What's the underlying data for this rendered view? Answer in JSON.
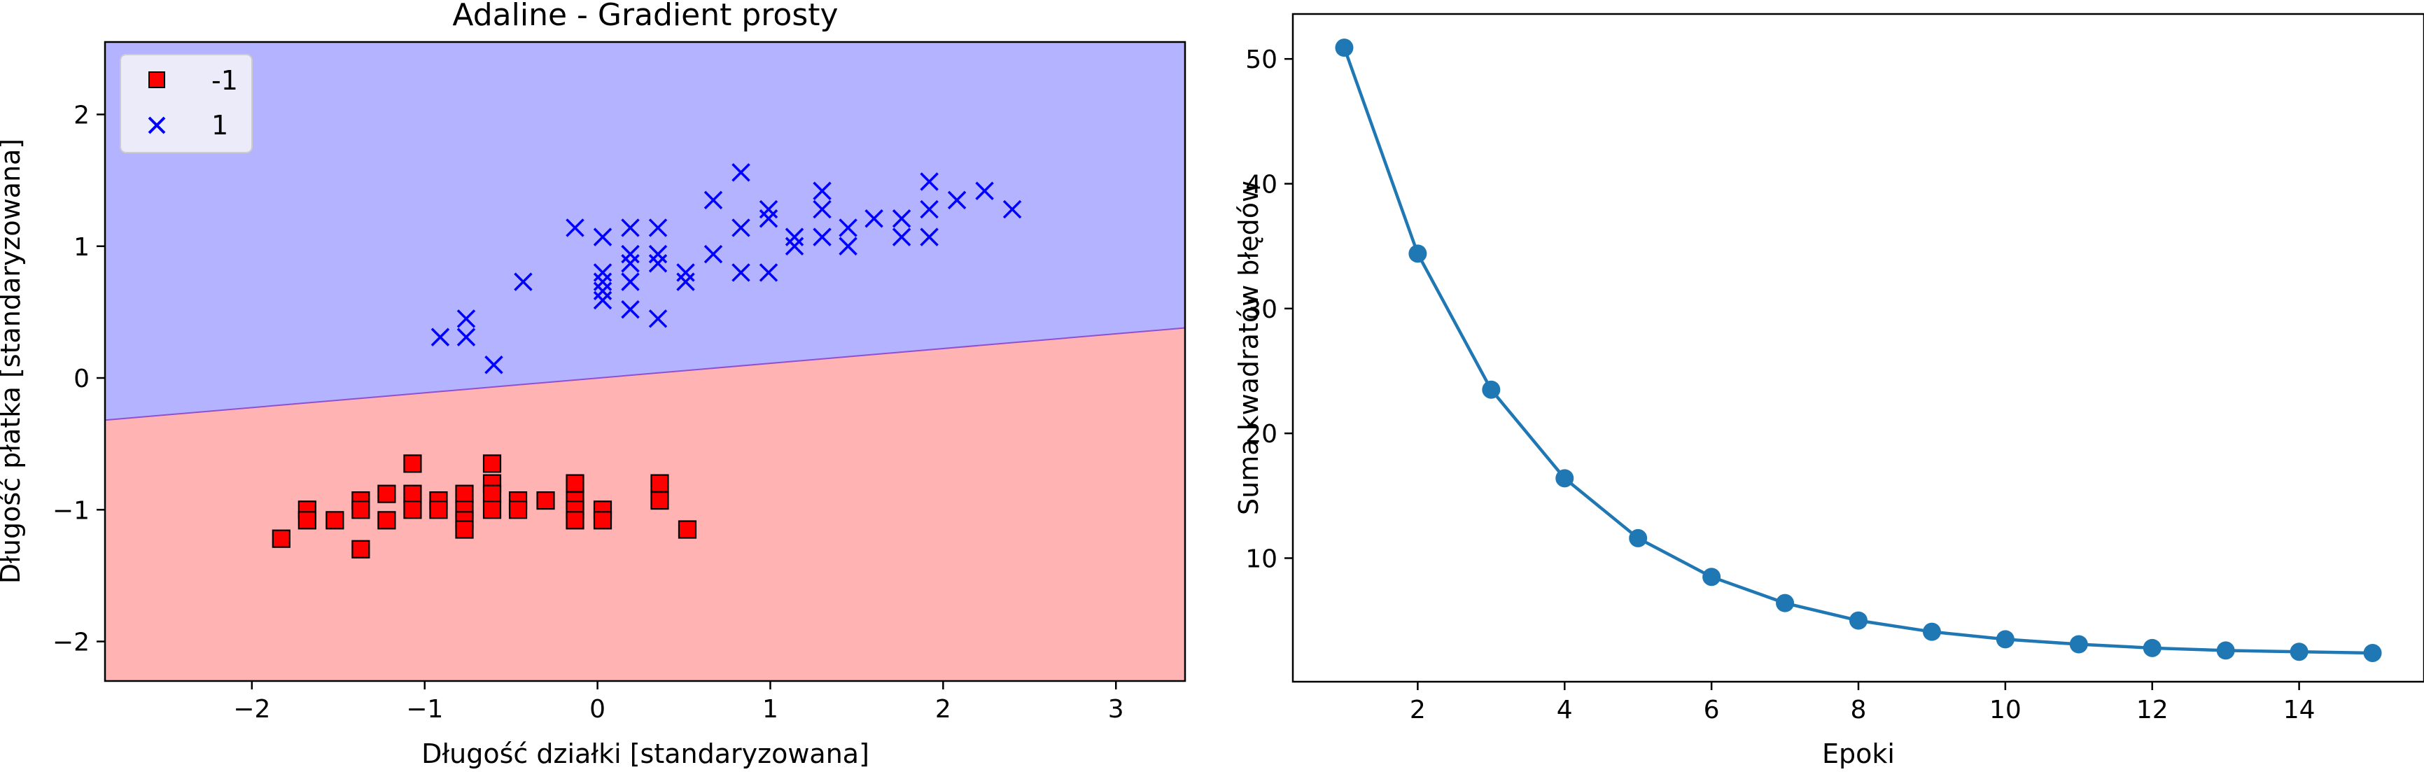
{
  "colors": {
    "region_neg": "#ffb3b3",
    "region_pos": "#b3b3ff",
    "boundary": "#9050d0",
    "class_neg": "#ff0000",
    "class_pos": "#0000ff",
    "line": "#1f77b4"
  },
  "chart_data": [
    {
      "type": "scatter",
      "title": "Adaline - Gradient prosty",
      "xlabel": "Długość działki [standaryzowana]",
      "ylabel": "Długość płatka [standaryzowana]",
      "xlim": [
        -2.85,
        3.4
      ],
      "ylim": [
        -2.3,
        2.55
      ],
      "xticks": [
        -2,
        -1,
        0,
        1,
        2,
        3
      ],
      "xtick_labels": [
        "−2",
        "−1",
        "0",
        "1",
        "2",
        "3"
      ],
      "yticks": [
        -2,
        -1,
        0,
        1,
        2
      ],
      "ytick_labels": [
        "−2",
        "−1",
        "0",
        "1",
        "2"
      ],
      "grid": false,
      "legend_position": "top-left",
      "decision_boundary": [
        [
          -2.85,
          -0.32
        ],
        [
          3.4,
          0.38
        ]
      ],
      "regions": [
        {
          "label": "-1",
          "side": "below"
        },
        {
          "label": "1",
          "side": "above"
        }
      ],
      "series": [
        {
          "name": "-1",
          "marker": "square",
          "points": [
            [
              -1.83,
              -1.22
            ],
            [
              -1.68,
              -1.0
            ],
            [
              -1.68,
              -1.08
            ],
            [
              -1.52,
              -1.08
            ],
            [
              -1.37,
              -0.93
            ],
            [
              -1.37,
              -1.0
            ],
            [
              -1.37,
              -1.3
            ],
            [
              -1.22,
              -0.88
            ],
            [
              -1.22,
              -1.08
            ],
            [
              -1.07,
              -0.65
            ],
            [
              -1.07,
              -0.88
            ],
            [
              -1.07,
              -1.0
            ],
            [
              -0.92,
              -0.93
            ],
            [
              -0.92,
              -1.0
            ],
            [
              -0.77,
              -0.88
            ],
            [
              -0.77,
              -1.0
            ],
            [
              -0.77,
              -1.08
            ],
            [
              -0.77,
              -1.15
            ],
            [
              -0.61,
              -0.65
            ],
            [
              -0.61,
              -0.8
            ],
            [
              -0.61,
              -0.88
            ],
            [
              -0.61,
              -1.0
            ],
            [
              -0.46,
              -0.93
            ],
            [
              -0.46,
              -1.0
            ],
            [
              -0.3,
              -0.93
            ],
            [
              -0.13,
              -0.8
            ],
            [
              -0.13,
              -0.93
            ],
            [
              -0.13,
              -1.0
            ],
            [
              -0.13,
              -1.08
            ],
            [
              0.03,
              -1.0
            ],
            [
              0.03,
              -1.08
            ],
            [
              0.36,
              -0.8
            ],
            [
              0.36,
              -0.93
            ],
            [
              0.52,
              -1.15
            ]
          ]
        },
        {
          "name": "1",
          "marker": "x",
          "points": [
            [
              -0.91,
              0.31
            ],
            [
              -0.76,
              0.45
            ],
            [
              -0.76,
              0.31
            ],
            [
              -0.6,
              0.1
            ],
            [
              -0.43,
              0.73
            ],
            [
              -0.13,
              1.14
            ],
            [
              0.03,
              1.07
            ],
            [
              0.03,
              0.8
            ],
            [
              0.03,
              0.73
            ],
            [
              0.03,
              0.66
            ],
            [
              0.03,
              0.59
            ],
            [
              0.19,
              1.14
            ],
            [
              0.19,
              0.94
            ],
            [
              0.19,
              0.87
            ],
            [
              0.19,
              0.73
            ],
            [
              0.19,
              0.52
            ],
            [
              0.35,
              1.14
            ],
            [
              0.35,
              0.94
            ],
            [
              0.35,
              0.87
            ],
            [
              0.35,
              0.45
            ],
            [
              0.51,
              0.8
            ],
            [
              0.51,
              0.73
            ],
            [
              0.67,
              1.35
            ],
            [
              0.67,
              0.94
            ],
            [
              0.83,
              1.56
            ],
            [
              0.83,
              1.14
            ],
            [
              0.83,
              0.8
            ],
            [
              0.99,
              1.28
            ],
            [
              0.99,
              1.21
            ],
            [
              0.99,
              0.8
            ],
            [
              1.14,
              1.07
            ],
            [
              1.14,
              1.0
            ],
            [
              1.3,
              1.42
            ],
            [
              1.3,
              1.28
            ],
            [
              1.3,
              1.07
            ],
            [
              1.45,
              1.14
            ],
            [
              1.45,
              1.0
            ],
            [
              1.6,
              1.21
            ],
            [
              1.76,
              1.21
            ],
            [
              1.76,
              1.07
            ],
            [
              1.92,
              1.49
            ],
            [
              1.92,
              1.28
            ],
            [
              1.92,
              1.07
            ],
            [
              2.08,
              1.35
            ],
            [
              2.24,
              1.42
            ],
            [
              2.4,
              1.28
            ]
          ]
        }
      ]
    },
    {
      "type": "line",
      "title": "",
      "xlabel": "Epoki",
      "ylabel": "Suma kwadratów błędów",
      "xlim": [
        0.3,
        15.7
      ],
      "ylim": [
        0.1,
        53.6
      ],
      "xticks": [
        2,
        4,
        6,
        8,
        10,
        12,
        14
      ],
      "yticks": [
        10,
        20,
        30,
        40,
        50
      ],
      "grid": false,
      "x": [
        1,
        2,
        3,
        4,
        5,
        6,
        7,
        8,
        9,
        10,
        11,
        12,
        13,
        14,
        15
      ],
      "values": [
        50.9,
        34.4,
        23.5,
        16.4,
        11.6,
        8.5,
        6.4,
        5.0,
        4.1,
        3.5,
        3.1,
        2.8,
        2.6,
        2.5,
        2.4
      ]
    }
  ]
}
